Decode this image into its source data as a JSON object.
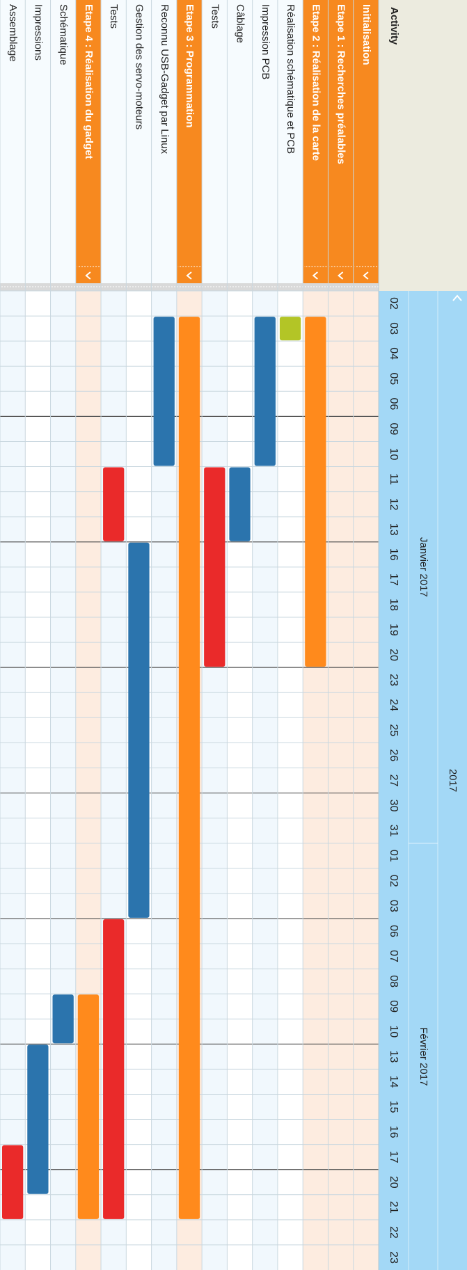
{
  "header": {
    "activity": "Activity",
    "year": "2017"
  },
  "timeline": {
    "months": [
      {
        "label": "Janvier 2017",
        "days": [
          {
            "date": "2017-01-02",
            "label": "02"
          },
          {
            "date": "2017-01-03",
            "label": "03"
          },
          {
            "date": "2017-01-04",
            "label": "04"
          },
          {
            "date": "2017-01-05",
            "label": "05"
          },
          {
            "date": "2017-01-06",
            "label": "06"
          },
          {
            "date": "2017-01-09",
            "label": "09"
          },
          {
            "date": "2017-01-10",
            "label": "10"
          },
          {
            "date": "2017-01-11",
            "label": "11"
          },
          {
            "date": "2017-01-12",
            "label": "12"
          },
          {
            "date": "2017-01-13",
            "label": "13"
          },
          {
            "date": "2017-01-16",
            "label": "16"
          },
          {
            "date": "2017-01-17",
            "label": "17"
          },
          {
            "date": "2017-01-18",
            "label": "18"
          },
          {
            "date": "2017-01-19",
            "label": "19"
          },
          {
            "date": "2017-01-20",
            "label": "20"
          },
          {
            "date": "2017-01-23",
            "label": "23"
          },
          {
            "date": "2017-01-24",
            "label": "24"
          },
          {
            "date": "2017-01-25",
            "label": "25"
          },
          {
            "date": "2017-01-26",
            "label": "26"
          },
          {
            "date": "2017-01-27",
            "label": "27"
          },
          {
            "date": "2017-01-30",
            "label": "30"
          },
          {
            "date": "2017-01-31",
            "label": "31"
          }
        ]
      },
      {
        "label": "Février 2017",
        "days": [
          {
            "date": "2017-02-01",
            "label": "01"
          },
          {
            "date": "2017-02-02",
            "label": "02"
          },
          {
            "date": "2017-02-03",
            "label": "03"
          },
          {
            "date": "2017-02-06",
            "label": "06"
          },
          {
            "date": "2017-02-07",
            "label": "07"
          },
          {
            "date": "2017-02-08",
            "label": "08"
          },
          {
            "date": "2017-02-09",
            "label": "09"
          },
          {
            "date": "2017-02-10",
            "label": "10"
          },
          {
            "date": "2017-02-13",
            "label": "13"
          },
          {
            "date": "2017-02-14",
            "label": "14"
          },
          {
            "date": "2017-02-15",
            "label": "15"
          },
          {
            "date": "2017-02-16",
            "label": "16"
          },
          {
            "date": "2017-02-17",
            "label": "17"
          },
          {
            "date": "2017-02-20",
            "label": "20"
          },
          {
            "date": "2017-02-21",
            "label": "21"
          },
          {
            "date": "2017-02-22",
            "label": "22"
          },
          {
            "date": "2017-02-23",
            "label": "23"
          }
        ]
      }
    ]
  },
  "rows": [
    {
      "label": "Initialisation",
      "group": true,
      "bars": []
    },
    {
      "label": "Etape 1 : Recherches préalables",
      "group": true,
      "bars": []
    },
    {
      "label": "Etape 2 : Réalisation de la carte",
      "group": true,
      "bars": [
        {
          "start": "2017-01-03",
          "end": "2017-01-20",
          "color": "#ff8a1c"
        }
      ]
    },
    {
      "label": "Réalisation schématique et PCB",
      "group": false,
      "bars": [
        {
          "start": "2017-01-03",
          "end": "2017-01-03",
          "color": "#b3c526"
        }
      ]
    },
    {
      "label": "Impression PCB",
      "group": false,
      "bars": [
        {
          "start": "2017-01-03",
          "end": "2017-01-10",
          "color": "#2b74ad"
        }
      ]
    },
    {
      "label": "Câblage",
      "group": false,
      "bars": [
        {
          "start": "2017-01-11",
          "end": "2017-01-13",
          "color": "#2b74ad"
        }
      ]
    },
    {
      "label": "Tests",
      "group": false,
      "bars": [
        {
          "start": "2017-01-11",
          "end": "2017-01-20",
          "color": "#ea2a2a"
        }
      ]
    },
    {
      "label": "Etape 3 : Programmation",
      "group": true,
      "bars": [
        {
          "start": "2017-01-03",
          "end": "2017-02-21",
          "color": "#ff8a1c"
        }
      ]
    },
    {
      "label": "Reconnu USB-Gadget par Linux",
      "group": false,
      "bars": [
        {
          "start": "2017-01-03",
          "end": "2017-01-10",
          "color": "#2b74ad"
        }
      ]
    },
    {
      "label": "Gestion des servo-moteurs",
      "group": false,
      "bars": [
        {
          "start": "2017-01-16",
          "end": "2017-02-03",
          "color": "#2b74ad"
        }
      ]
    },
    {
      "label": "Tests",
      "group": false,
      "bars": [
        {
          "start": "2017-01-11",
          "end": "2017-01-13",
          "color": "#ea2a2a"
        },
        {
          "start": "2017-02-06",
          "end": "2017-02-21",
          "color": "#ea2a2a"
        }
      ]
    },
    {
      "label": "Etape 4 : Réalisation du gadget",
      "group": true,
      "bars": [
        {
          "start": "2017-02-09",
          "end": "2017-02-21",
          "color": "#ff8a1c"
        }
      ]
    },
    {
      "label": "Schématique",
      "group": false,
      "bars": [
        {
          "start": "2017-02-09",
          "end": "2017-02-10",
          "color": "#2b74ad"
        }
      ]
    },
    {
      "label": "Impressions",
      "group": false,
      "bars": [
        {
          "start": "2017-02-13",
          "end": "2017-02-20",
          "color": "#2b74ad"
        }
      ]
    },
    {
      "label": "Assemblage",
      "group": false,
      "bars": [
        {
          "start": "2017-02-17",
          "end": "2017-02-21",
          "color": "#ea2a2a"
        }
      ]
    }
  ]
}
